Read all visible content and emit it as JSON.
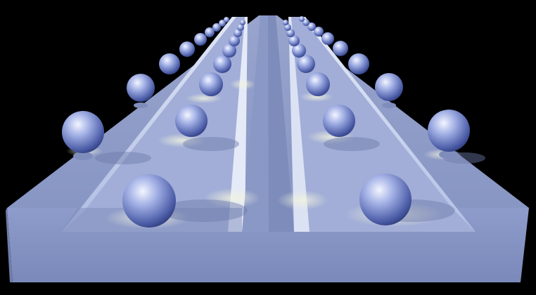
{
  "scene": {
    "background": "#000000",
    "top_surface_color": "#8e9cc8",
    "top_surface_shadow": "#7c89b4",
    "front_face_color": "#8594c4",
    "front_face_dark": "#6f7ead",
    "groove_wall_light": "#d4dcf2",
    "groove_wall_mid": "#b7c3e6",
    "groove_floor": "#96a3cf",
    "highlight": "#e9efd9",
    "sphere_light": "#eef2ff",
    "sphere_mid": "#8798d8",
    "sphere_dark": "#2c3a7e"
  }
}
